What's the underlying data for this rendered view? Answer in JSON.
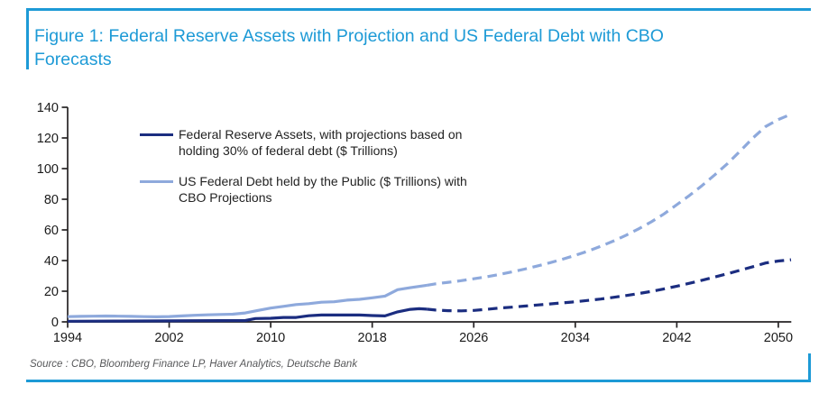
{
  "header": {
    "title_line1": "Figure 1: Federal Reserve Assets with Projection and US Federal Debt with CBO",
    "title_line2": "Forecasts",
    "accent_color": "#1d9ad6"
  },
  "legend": {
    "items": [
      {
        "line1": "Federal Reserve Assets, with projections based on",
        "line2": "holding 30% of federal debt ($ Trillions)",
        "color": "#1b2d80"
      },
      {
        "line1": "US Federal Debt held by the Public ($ Trillions) with",
        "line2": "CBO Projections",
        "color": "#8ea9dc"
      }
    ]
  },
  "footer": {
    "source": "Source : CBO, Bloomberg Finance LP, Haver Analytics, Deutsche Bank"
  },
  "chart_data": {
    "type": "line",
    "title": "Figure 1: Federal Reserve Assets with Projection and US Federal Debt with CBO Forecasts",
    "xlabel": "",
    "ylabel": "",
    "xlim": [
      1994,
      2051.3
    ],
    "ylim": [
      0,
      140
    ],
    "x_ticks": [
      1994,
      2002,
      2010,
      2018,
      2026,
      2034,
      2042,
      2050
    ],
    "y_ticks": [
      0,
      20,
      40,
      60,
      80,
      100,
      120,
      140
    ],
    "grid": false,
    "legend_position": "upper-left-inside",
    "axis_color": "#262324",
    "tick_label_color": "#1a1a1a",
    "series": [
      {
        "name": "US Federal Debt held by the Public ($ Trillions) with CBO Projections",
        "color": "#8ea9dc",
        "segments": [
          {
            "style": "solid",
            "points": [
              [
                1994,
                3.4
              ],
              [
                1995,
                3.6
              ],
              [
                1996,
                3.7
              ],
              [
                1997,
                3.8
              ],
              [
                1998,
                3.7
              ],
              [
                1999,
                3.6
              ],
              [
                2000,
                3.4
              ],
              [
                2001,
                3.3
              ],
              [
                2002,
                3.5
              ],
              [
                2003,
                3.9
              ],
              [
                2004,
                4.3
              ],
              [
                2005,
                4.6
              ],
              [
                2006,
                4.8
              ],
              [
                2007,
                5.0
              ],
              [
                2008,
                5.8
              ],
              [
                2009,
                7.5
              ],
              [
                2010,
                9.0
              ],
              [
                2011,
                10.1
              ],
              [
                2012,
                11.3
              ],
              [
                2013,
                11.9
              ],
              [
                2014,
                12.8
              ],
              [
                2015,
                13.1
              ],
              [
                2016,
                14.2
              ],
              [
                2017,
                14.7
              ],
              [
                2018,
                15.7
              ],
              [
                2019,
                16.8
              ],
              [
                2020,
                21.0
              ],
              [
                2021,
                22.3
              ],
              [
                2022.3,
                23.9
              ]
            ]
          },
          {
            "style": "dashed",
            "points": [
              [
                2022.3,
                23.9
              ],
              [
                2023,
                24.8
              ],
              [
                2024,
                25.8
              ],
              [
                2025,
                26.9
              ],
              [
                2026,
                28.1
              ],
              [
                2027,
                29.4
              ],
              [
                2028,
                30.9
              ],
              [
                2029,
                32.6
              ],
              [
                2030,
                34.4
              ],
              [
                2031,
                36.4
              ],
              [
                2032,
                38.6
              ],
              [
                2033,
                40.9
              ],
              [
                2034,
                43.4
              ],
              [
                2035,
                46.2
              ],
              [
                2036,
                49.3
              ],
              [
                2037,
                52.7
              ],
              [
                2038,
                56.5
              ],
              [
                2039,
                60.7
              ],
              [
                2040,
                65.3
              ],
              [
                2041,
                70.5
              ],
              [
                2042,
                76.5
              ],
              [
                2043,
                82.5
              ],
              [
                2044,
                89.0
              ],
              [
                2045,
                96.0
              ],
              [
                2046,
                103.3
              ],
              [
                2047,
                111.5
              ],
              [
                2048,
                120.0
              ],
              [
                2049,
                127.5
              ],
              [
                2050,
                132.0
              ],
              [
                2051,
                135.5
              ]
            ]
          }
        ]
      },
      {
        "name": "Federal Reserve Assets, with projections based on holding 30% of federal debt ($ Trillions)",
        "color": "#1b2d80",
        "segments": [
          {
            "style": "solid",
            "points": [
              [
                1994,
                0.4
              ],
              [
                1996,
                0.45
              ],
              [
                1998,
                0.5
              ],
              [
                2000,
                0.6
              ],
              [
                2002,
                0.65
              ],
              [
                2004,
                0.75
              ],
              [
                2006,
                0.83
              ],
              [
                2008,
                0.9
              ],
              [
                2008.8,
                2.2
              ],
              [
                2010,
                2.35
              ],
              [
                2011,
                2.9
              ],
              [
                2012,
                2.9
              ],
              [
                2013,
                4.0
              ],
              [
                2014,
                4.5
              ],
              [
                2015,
                4.5
              ],
              [
                2016,
                4.45
              ],
              [
                2017,
                4.45
              ],
              [
                2018,
                4.1
              ],
              [
                2019,
                3.9
              ],
              [
                2020,
                6.5
              ],
              [
                2021,
                8.2
              ],
              [
                2021.7,
                8.6
              ],
              [
                2022.3,
                8.3
              ]
            ]
          },
          {
            "style": "dashed",
            "points": [
              [
                2022.3,
                8.3
              ],
              [
                2023,
                7.7
              ],
              [
                2024,
                7.3
              ],
              [
                2025,
                7.2
              ],
              [
                2026,
                7.5
              ],
              [
                2027,
                8.2
              ],
              [
                2028,
                9.0
              ],
              [
                2029,
                9.6
              ],
              [
                2030,
                10.3
              ],
              [
                2031,
                11.0
              ],
              [
                2032,
                11.7
              ],
              [
                2033,
                12.4
              ],
              [
                2034,
                13.1
              ],
              [
                2035,
                14.0
              ],
              [
                2036,
                14.9
              ],
              [
                2037,
                16.0
              ],
              [
                2038,
                17.2
              ],
              [
                2039,
                18.5
              ],
              [
                2040,
                19.9
              ],
              [
                2041,
                21.5
              ],
              [
                2042,
                23.3
              ],
              [
                2043,
                25.2
              ],
              [
                2044,
                27.2
              ],
              [
                2045,
                29.3
              ],
              [
                2046,
                31.4
              ],
              [
                2047,
                33.7
              ],
              [
                2048,
                36.0
              ],
              [
                2049,
                38.4
              ],
              [
                2050,
                39.7
              ],
              [
                2051,
                40.5
              ]
            ]
          }
        ]
      }
    ]
  }
}
